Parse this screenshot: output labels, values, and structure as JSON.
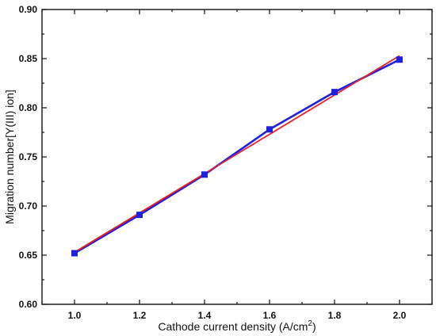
{
  "chart_data": {
    "type": "line",
    "title": "",
    "xlabel_main": "Cathode current density (A/cm",
    "xlabel_sup": "2",
    "xlabel_tail": ")",
    "ylabel": "Migration number[Y(III) ion]",
    "xlim": [
      0.9,
      2.1
    ],
    "ylim": [
      0.6,
      0.9
    ],
    "x_ticks": [
      "1.0",
      "1.2",
      "1.4",
      "1.6",
      "1.8",
      "2.0"
    ],
    "y_ticks": [
      "0.60",
      "0.65",
      "0.70",
      "0.75",
      "0.80",
      "0.85",
      "0.90"
    ],
    "grid": false,
    "legend": "none",
    "series": [
      {
        "kind": "line-with-markers",
        "marker": "square",
        "color": "#1f1fe0",
        "x": [
          1.0,
          1.2,
          1.4,
          1.6,
          1.8,
          2.0
        ],
        "y": [
          0.652,
          0.691,
          0.732,
          0.778,
          0.816,
          0.849
        ]
      },
      {
        "kind": "linear-fit",
        "color": "#e8202a",
        "x": [
          1.0,
          2.0
        ],
        "y": [
          0.653,
          0.853
        ]
      }
    ]
  }
}
